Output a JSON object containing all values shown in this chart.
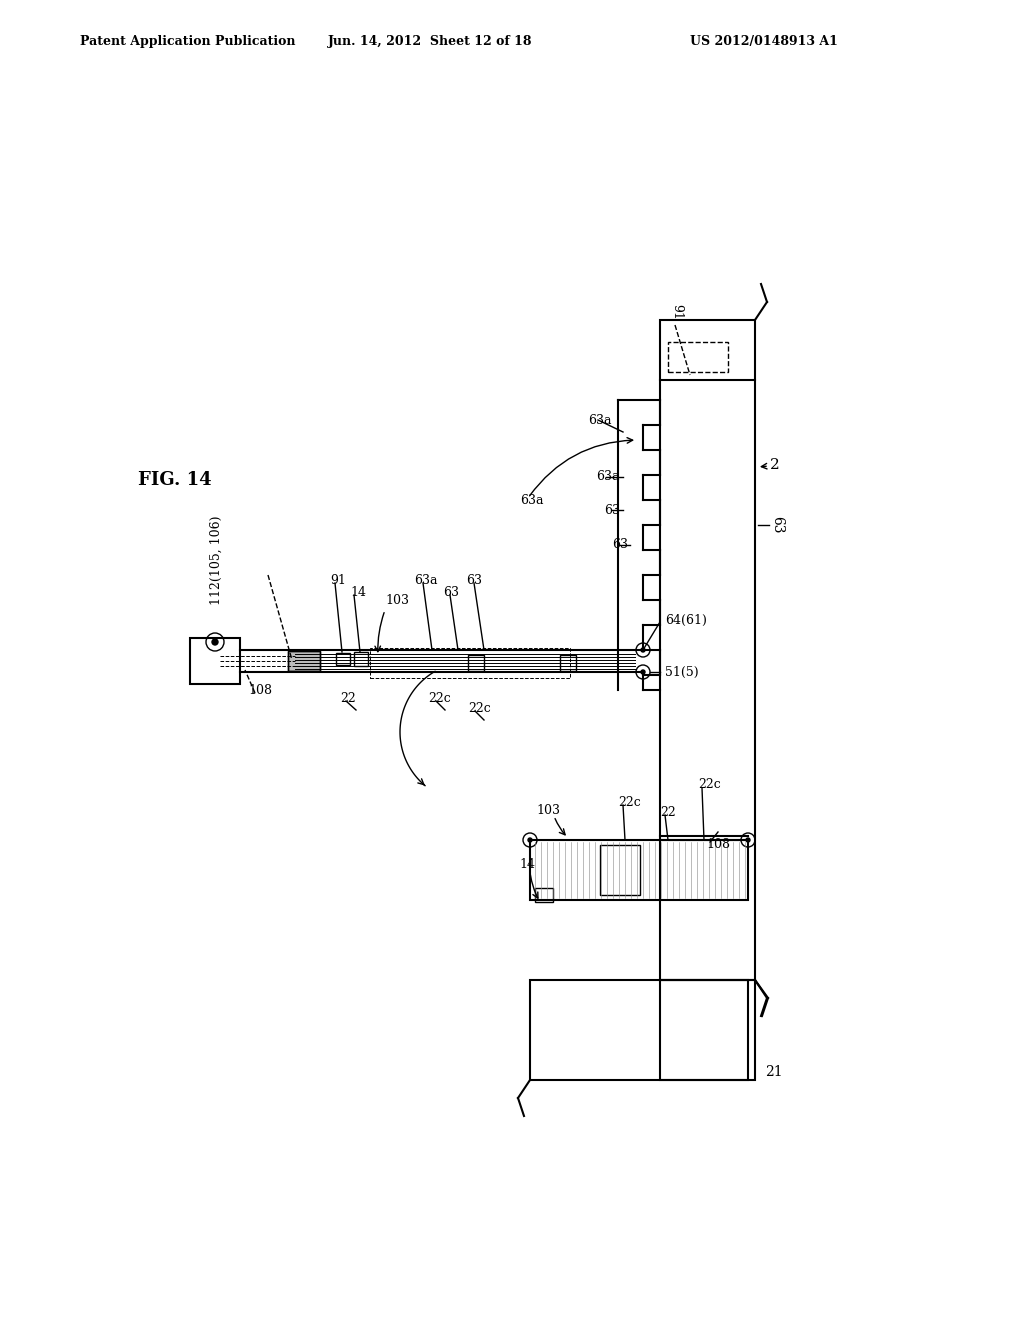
{
  "title": "FIG. 14",
  "header_left": "Patent Application Publication",
  "header_mid": "Jun. 14, 2012  Sheet 12 of 18",
  "header_right": "US 2012/0148913 A1",
  "bg_color": "#ffffff",
  "line_color": "#000000",
  "fig_label": "FIG. 14"
}
